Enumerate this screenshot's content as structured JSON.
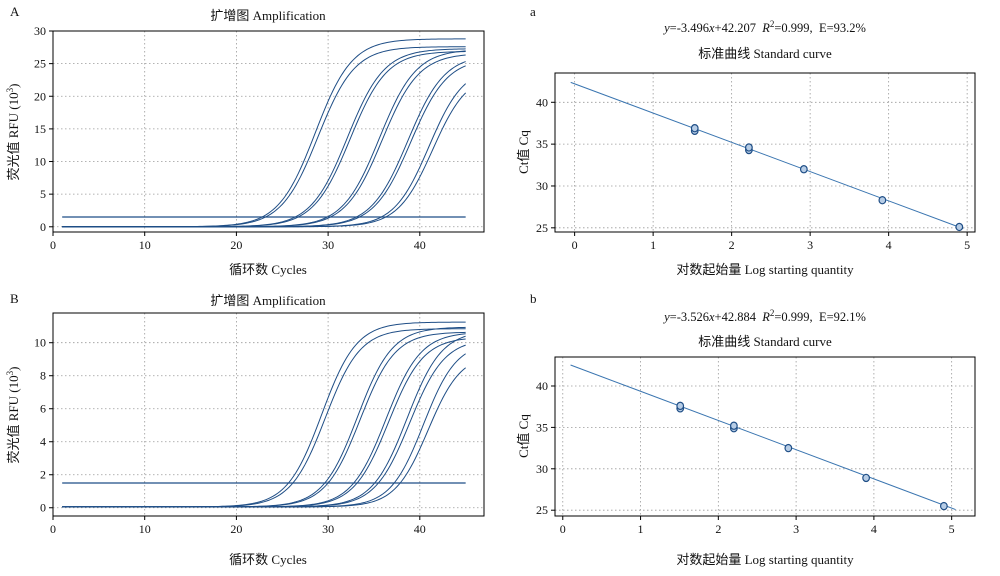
{
  "colors": {
    "curve": "#1f4e86",
    "fit_line": "#3a75b0",
    "point_fill": "#b7cde6",
    "point_stroke": "#1f4e86",
    "grid": "#9a9a9a",
    "axis": "#000000"
  },
  "chart_data": [
    {
      "panel_letter": "A",
      "type": "line",
      "title": "扩增图 Amplification",
      "xlabel": "循环数 Cycles",
      "ylabel": "荧光值 RFU (10",
      "ylabel_exp": "3",
      "ylabel_close": ")",
      "xlim": [
        0,
        47
      ],
      "ylim": [
        -0.8,
        30
      ],
      "xticks": [
        0,
        10,
        20,
        30,
        40
      ],
      "yticks": [
        0,
        5,
        10,
        15,
        20,
        25,
        30
      ],
      "grid": true,
      "threshold": 1.5,
      "cycle_range": [
        1,
        45
      ],
      "baseline": 0.0,
      "series": [
        {
          "midpoint": 28.6,
          "plateau": 28.8,
          "slope": 2.0
        },
        {
          "midpoint": 28.9,
          "plateau": 27.6,
          "slope": 2.0
        },
        {
          "midpoint": 32.1,
          "plateau": 27.3,
          "slope": 2.0
        },
        {
          "midpoint": 32.4,
          "plateau": 26.9,
          "slope": 2.0
        },
        {
          "midpoint": 35.6,
          "plateau": 27.2,
          "slope": 2.0
        },
        {
          "midpoint": 35.9,
          "plateau": 26.6,
          "slope": 2.0
        },
        {
          "midpoint": 38.7,
          "plateau": 26.4,
          "slope": 2.0
        },
        {
          "midpoint": 39.0,
          "plateau": 25.9,
          "slope": 2.0
        },
        {
          "midpoint": 41.0,
          "plateau": 24.6,
          "slope": 1.9
        },
        {
          "midpoint": 41.4,
          "plateau": 23.6,
          "slope": 1.9
        }
      ]
    },
    {
      "panel_letter": "a",
      "type": "scatter",
      "equation": {
        "y": "y",
        "x": "x",
        "eq_part1": "=-3.496",
        "eq_part2": "+42.207",
        "r": "R",
        "r_exp": "2",
        "r_rest": "=0.999,",
        "eff": "E=93.2%"
      },
      "title": "标准曲线 Standard curve",
      "xlabel": "对数起始量 Log starting quantity",
      "ylabel": "Ct值 Cq",
      "xlim": [
        -0.25,
        5.1
      ],
      "ylim": [
        24.5,
        43.5
      ],
      "xticks": [
        0,
        1,
        2,
        3,
        4,
        5
      ],
      "yticks": [
        25,
        30,
        35,
        40
      ],
      "grid": true,
      "fit": {
        "slope": -3.496,
        "intercept": 42.207,
        "x_range": [
          -0.05,
          4.95
        ]
      },
      "points": [
        {
          "x": 1.53,
          "y": 36.6
        },
        {
          "x": 1.53,
          "y": 36.9
        },
        {
          "x": 2.22,
          "y": 34.3
        },
        {
          "x": 2.22,
          "y": 34.6
        },
        {
          "x": 2.92,
          "y": 32.0
        },
        {
          "x": 3.92,
          "y": 28.3
        },
        {
          "x": 4.9,
          "y": 25.1
        }
      ]
    },
    {
      "panel_letter": "B",
      "type": "line",
      "title": "扩增图 Amplification",
      "xlabel": "循环数 Cycles",
      "ylabel": "荧光值 RFU (10",
      "ylabel_exp": "3",
      "ylabel_close": ")",
      "xlim": [
        0,
        47
      ],
      "ylim": [
        -0.5,
        11.8
      ],
      "xticks": [
        0,
        10,
        20,
        30,
        40
      ],
      "yticks": [
        0,
        2,
        4,
        6,
        8,
        10
      ],
      "grid": true,
      "threshold": 1.5,
      "cycle_range": [
        1,
        45
      ],
      "baseline": 0.05,
      "series": [
        {
          "midpoint": 29.3,
          "plateau": 11.2,
          "slope": 1.9
        },
        {
          "midpoint": 29.7,
          "plateau": 10.8,
          "slope": 1.9
        },
        {
          "midpoint": 33.2,
          "plateau": 10.9,
          "slope": 1.9
        },
        {
          "midpoint": 33.5,
          "plateau": 10.6,
          "slope": 1.9
        },
        {
          "midpoint": 36.3,
          "plateau": 10.6,
          "slope": 1.9
        },
        {
          "midpoint": 36.6,
          "plateau": 10.3,
          "slope": 1.9
        },
        {
          "midpoint": 38.6,
          "plateau": 10.7,
          "slope": 1.9
        },
        {
          "midpoint": 38.9,
          "plateau": 10.2,
          "slope": 1.9
        },
        {
          "midpoint": 40.4,
          "plateau": 10.0,
          "slope": 1.8
        },
        {
          "midpoint": 40.9,
          "plateau": 9.3,
          "slope": 1.8
        }
      ]
    },
    {
      "panel_letter": "b",
      "type": "scatter",
      "equation": {
        "y": "y",
        "x": "x",
        "eq_part1": "=-3.526",
        "eq_part2": "+42.884",
        "r": "R",
        "r_exp": "2",
        "r_rest": "=0.999,",
        "eff": "E=92.1%"
      },
      "title": "标准曲线 Standard curve",
      "xlabel": "对数起始量 Log starting quantity",
      "ylabel": "Ct值 Cq",
      "xlim": [
        -0.1,
        5.3
      ],
      "ylim": [
        24.3,
        43.5
      ],
      "xticks": [
        0,
        1,
        2,
        3,
        4,
        5
      ],
      "yticks": [
        25,
        30,
        35,
        40
      ],
      "grid": true,
      "fit": {
        "slope": -3.526,
        "intercept": 42.884,
        "x_range": [
          0.1,
          5.05
        ]
      },
      "points": [
        {
          "x": 1.51,
          "y": 37.3
        },
        {
          "x": 1.51,
          "y": 37.6
        },
        {
          "x": 2.2,
          "y": 34.9
        },
        {
          "x": 2.2,
          "y": 35.2
        },
        {
          "x": 2.9,
          "y": 32.5
        },
        {
          "x": 3.9,
          "y": 28.9
        },
        {
          "x": 4.9,
          "y": 25.5
        }
      ]
    }
  ]
}
